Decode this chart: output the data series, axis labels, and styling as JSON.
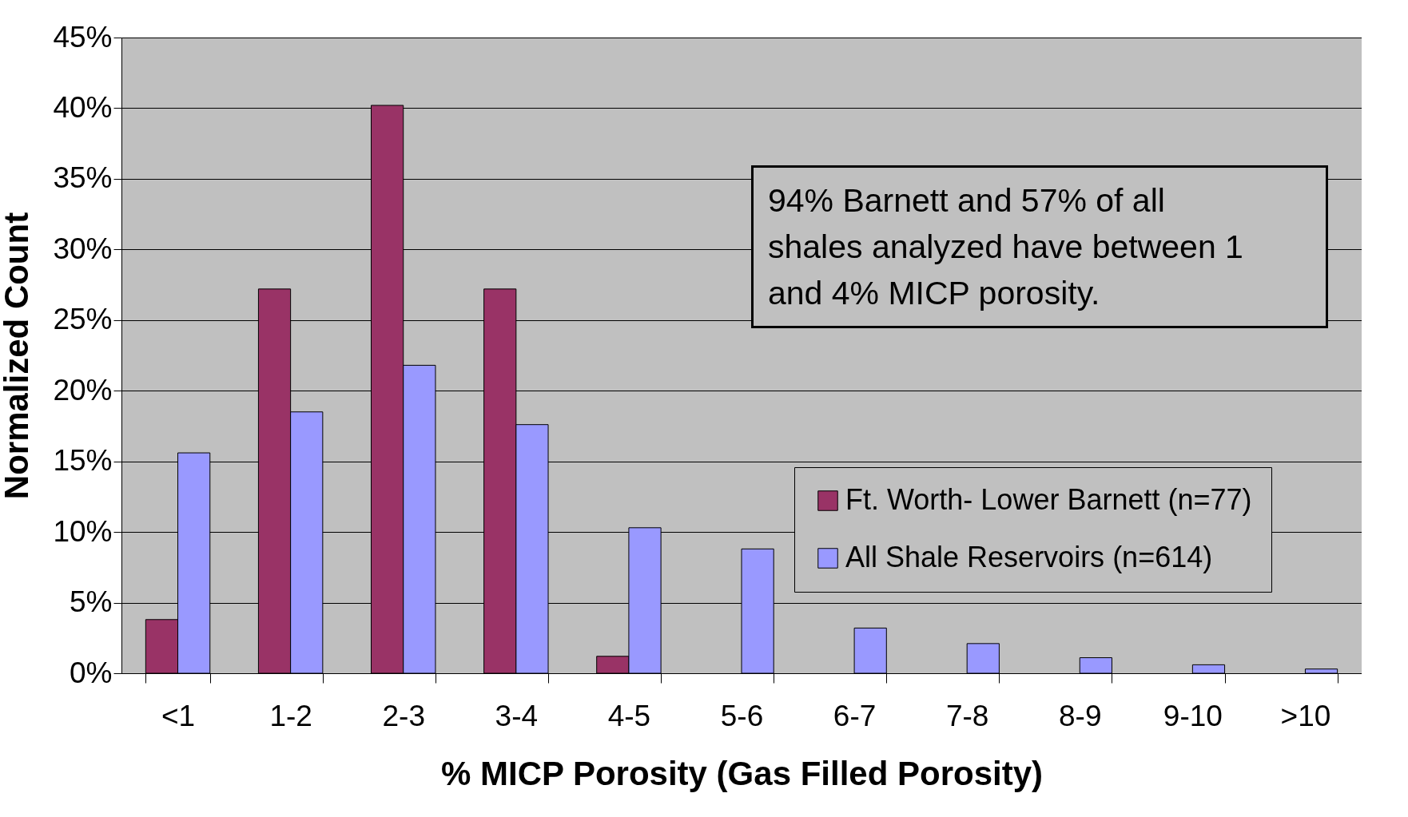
{
  "chart_data": {
    "type": "bar",
    "xlabel": "% MICP Porosity (Gas Filled Porosity)",
    "ylabel": "Normalized Count",
    "categories": [
      "<1",
      "1-2",
      "2-3",
      "3-4",
      "4-5",
      "5-6",
      "6-7",
      "7-8",
      "8-9",
      "9-10",
      ">10"
    ],
    "series": [
      {
        "name": "Ft. Worth- Lower Barnett (n=77)",
        "color": "#993366",
        "values": [
          3.8,
          27.2,
          40.2,
          27.2,
          1.2,
          0,
          0,
          0,
          0,
          0,
          0
        ]
      },
      {
        "name": "All Shale Reservoirs (n=614)",
        "color": "#9999ff",
        "values": [
          15.6,
          18.5,
          21.8,
          17.6,
          10.3,
          8.8,
          3.2,
          2.1,
          1.1,
          0.6,
          0.3
        ]
      }
    ],
    "ylim": [
      0,
      45
    ],
    "yticks": [
      {
        "value": 0,
        "label": "0%"
      },
      {
        "value": 5,
        "label": "5%"
      },
      {
        "value": 10,
        "label": "10%"
      },
      {
        "value": 15,
        "label": "15%"
      },
      {
        "value": 20,
        "label": "20%"
      },
      {
        "value": 25,
        "label": "25%"
      },
      {
        "value": 30,
        "label": "30%"
      },
      {
        "value": 35,
        "label": "35%"
      },
      {
        "value": 40,
        "label": "40%"
      },
      {
        "value": 45,
        "label": "45%"
      }
    ],
    "grid": "y",
    "legend": "right",
    "annotations": [
      "94% Barnett and 57% of all shales analyzed have between 1 and 4% MICP porosity."
    ]
  }
}
